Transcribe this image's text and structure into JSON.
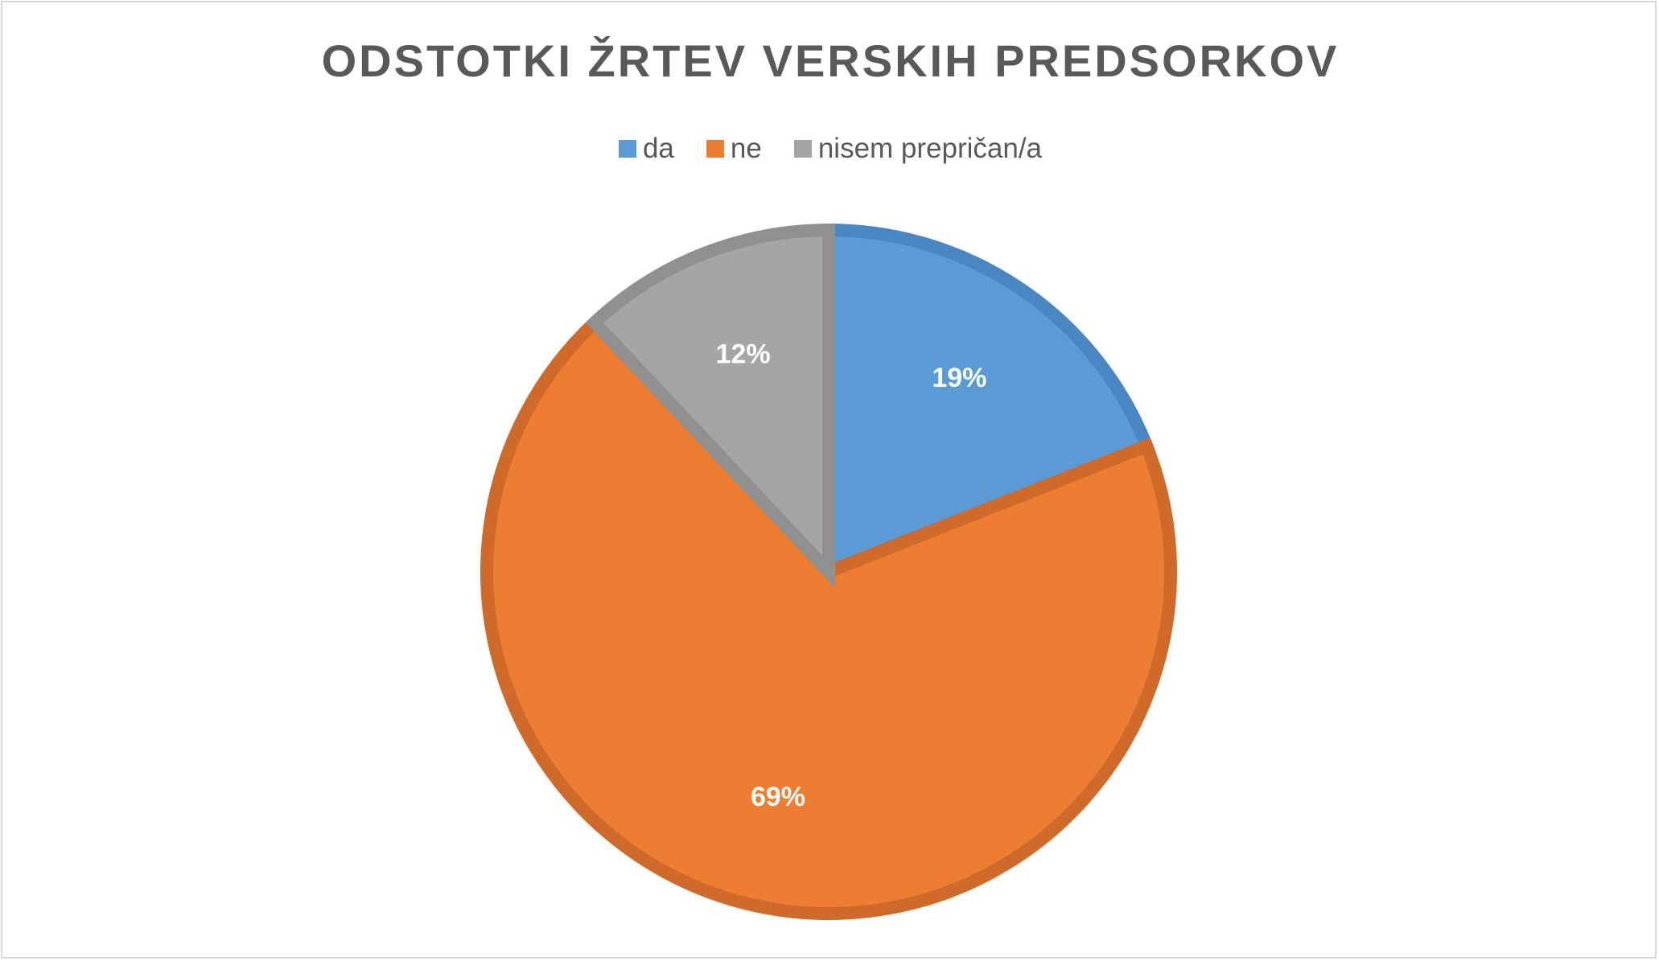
{
  "chart_data": {
    "type": "pie",
    "title": "ODSTOTKI ŽRTEV VERSKIH PREDSORKOV",
    "legend_position": "top",
    "slices": [
      {
        "label": "da",
        "value": 19,
        "display": "19%",
        "color": "#5b9bd5",
        "edge": "#4a86c2"
      },
      {
        "label": "ne",
        "value": 69,
        "display": "69%",
        "color": "#ed7d31",
        "edge": "#d06a2a"
      },
      {
        "label": "nisem prepričan/a",
        "value": 12,
        "display": "12%",
        "color": "#a5a5a5",
        "edge": "#909090"
      }
    ]
  }
}
